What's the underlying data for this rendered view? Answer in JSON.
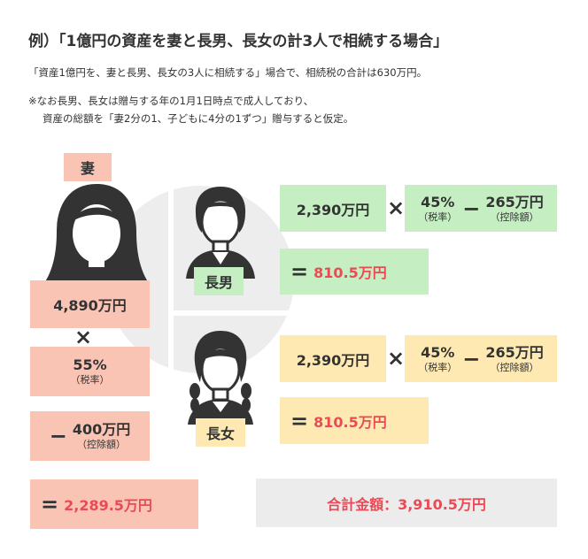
{
  "title": "例）「1億円の資産を妻と長男、長女の計3人で相続する場合」",
  "notes": {
    "line1": "「資産1億円を、妻と長男、長女の3人に相続する」場合で、相続税の合計は630万円。",
    "line2": "※なお長男、長女は贈与する年の1月1日時点で成人しており、",
    "line3": "資産の総額を「妻2分の1、子どもに4分の1ずつ」贈与すると仮定。"
  },
  "operators": {
    "times": "×",
    "minus": "−",
    "equals": "="
  },
  "wife": {
    "label": "妻",
    "amount": "4,890万円",
    "rate": "55%",
    "rate_note": "（税率）",
    "deduction": "400万円",
    "deduction_note": "（控除額）",
    "result": "2,289.5万円"
  },
  "son": {
    "label": "長男",
    "amount": "2,390万円",
    "rate": "45%",
    "rate_note": "（税率）",
    "deduction": "265万円",
    "deduction_note": "（控除額）",
    "result": "810.5万円"
  },
  "daughter": {
    "label": "長女",
    "amount": "2,390万円",
    "rate": "45%",
    "rate_note": "（税率）",
    "deduction": "265万円",
    "deduction_note": "（控除額）",
    "result": "810.5万円"
  },
  "total": {
    "label": "合計金額：",
    "value": "3,910.5万円"
  },
  "colors": {
    "wife": "#fac4b5",
    "son": "#c6eec3",
    "daughter": "#fde9b1",
    "total": "#ececec",
    "accent_red": "#e94a55",
    "silhouette": "#333333"
  }
}
